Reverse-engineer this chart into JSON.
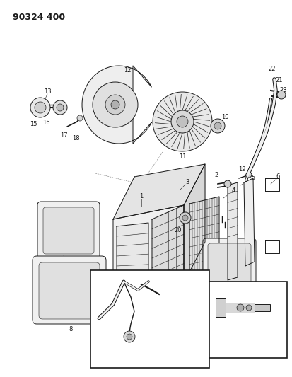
{
  "title": "90324 400",
  "bg_color": "#ffffff",
  "line_color": "#1a1a1a",
  "title_fontsize": 9,
  "label_fontsize": 6
}
